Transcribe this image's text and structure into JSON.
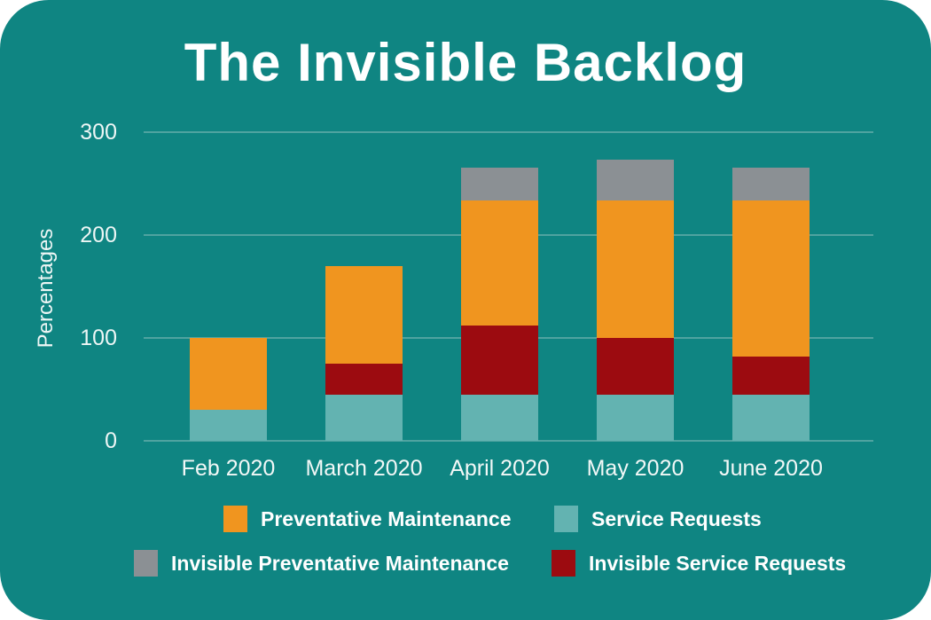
{
  "title": "The Invisible Backlog",
  "y_axis": {
    "label": "Percentages",
    "ticks": [
      300,
      200,
      100,
      0
    ]
  },
  "chart_data": {
    "type": "bar",
    "stacked": true,
    "title": "The Invisible Backlog",
    "categories": [
      "Feb 2020",
      "March 2020",
      "April 2020",
      "May 2020",
      "June 2020"
    ],
    "series": [
      {
        "name": "Service Requests",
        "color": "#63B3B1",
        "values": [
          30,
          45,
          45,
          45,
          45
        ]
      },
      {
        "name": "Invisible Service Requests",
        "color": "#9C0B10",
        "values": [
          0,
          30,
          67,
          55,
          37
        ]
      },
      {
        "name": "Preventative Maintenance",
        "color": "#F0951F",
        "values": [
          70,
          95,
          122,
          134,
          152
        ]
      },
      {
        "name": "Invisible Preventative Maintenance",
        "color": "#8B9094",
        "values": [
          0,
          0,
          32,
          39,
          32
        ]
      }
    ],
    "stack_totals": [
      100,
      170,
      266,
      273,
      266
    ],
    "xlabel": "",
    "ylabel": "Percentages",
    "ylim": [
      0,
      300
    ],
    "gridlines": [
      300,
      200,
      100,
      0
    ],
    "grid": true,
    "legend_position": "bottom"
  },
  "legend": {
    "items": [
      {
        "label": "Preventative Maintenance",
        "color": "#F0951F"
      },
      {
        "label": "Service Requests",
        "color": "#63B3B1"
      },
      {
        "label": "Invisible Preventative Maintenance",
        "color": "#8B9094"
      },
      {
        "label": "Invisible Service Requests",
        "color": "#9C0B10"
      }
    ]
  },
  "colors": {
    "background": "#0F8582",
    "gridline": "#4FA3A0",
    "text": "#FFFFFF",
    "orange": "#F0951F",
    "light_teal": "#63B3B1",
    "gray": "#8B9094",
    "dark_red": "#9C0B10"
  }
}
